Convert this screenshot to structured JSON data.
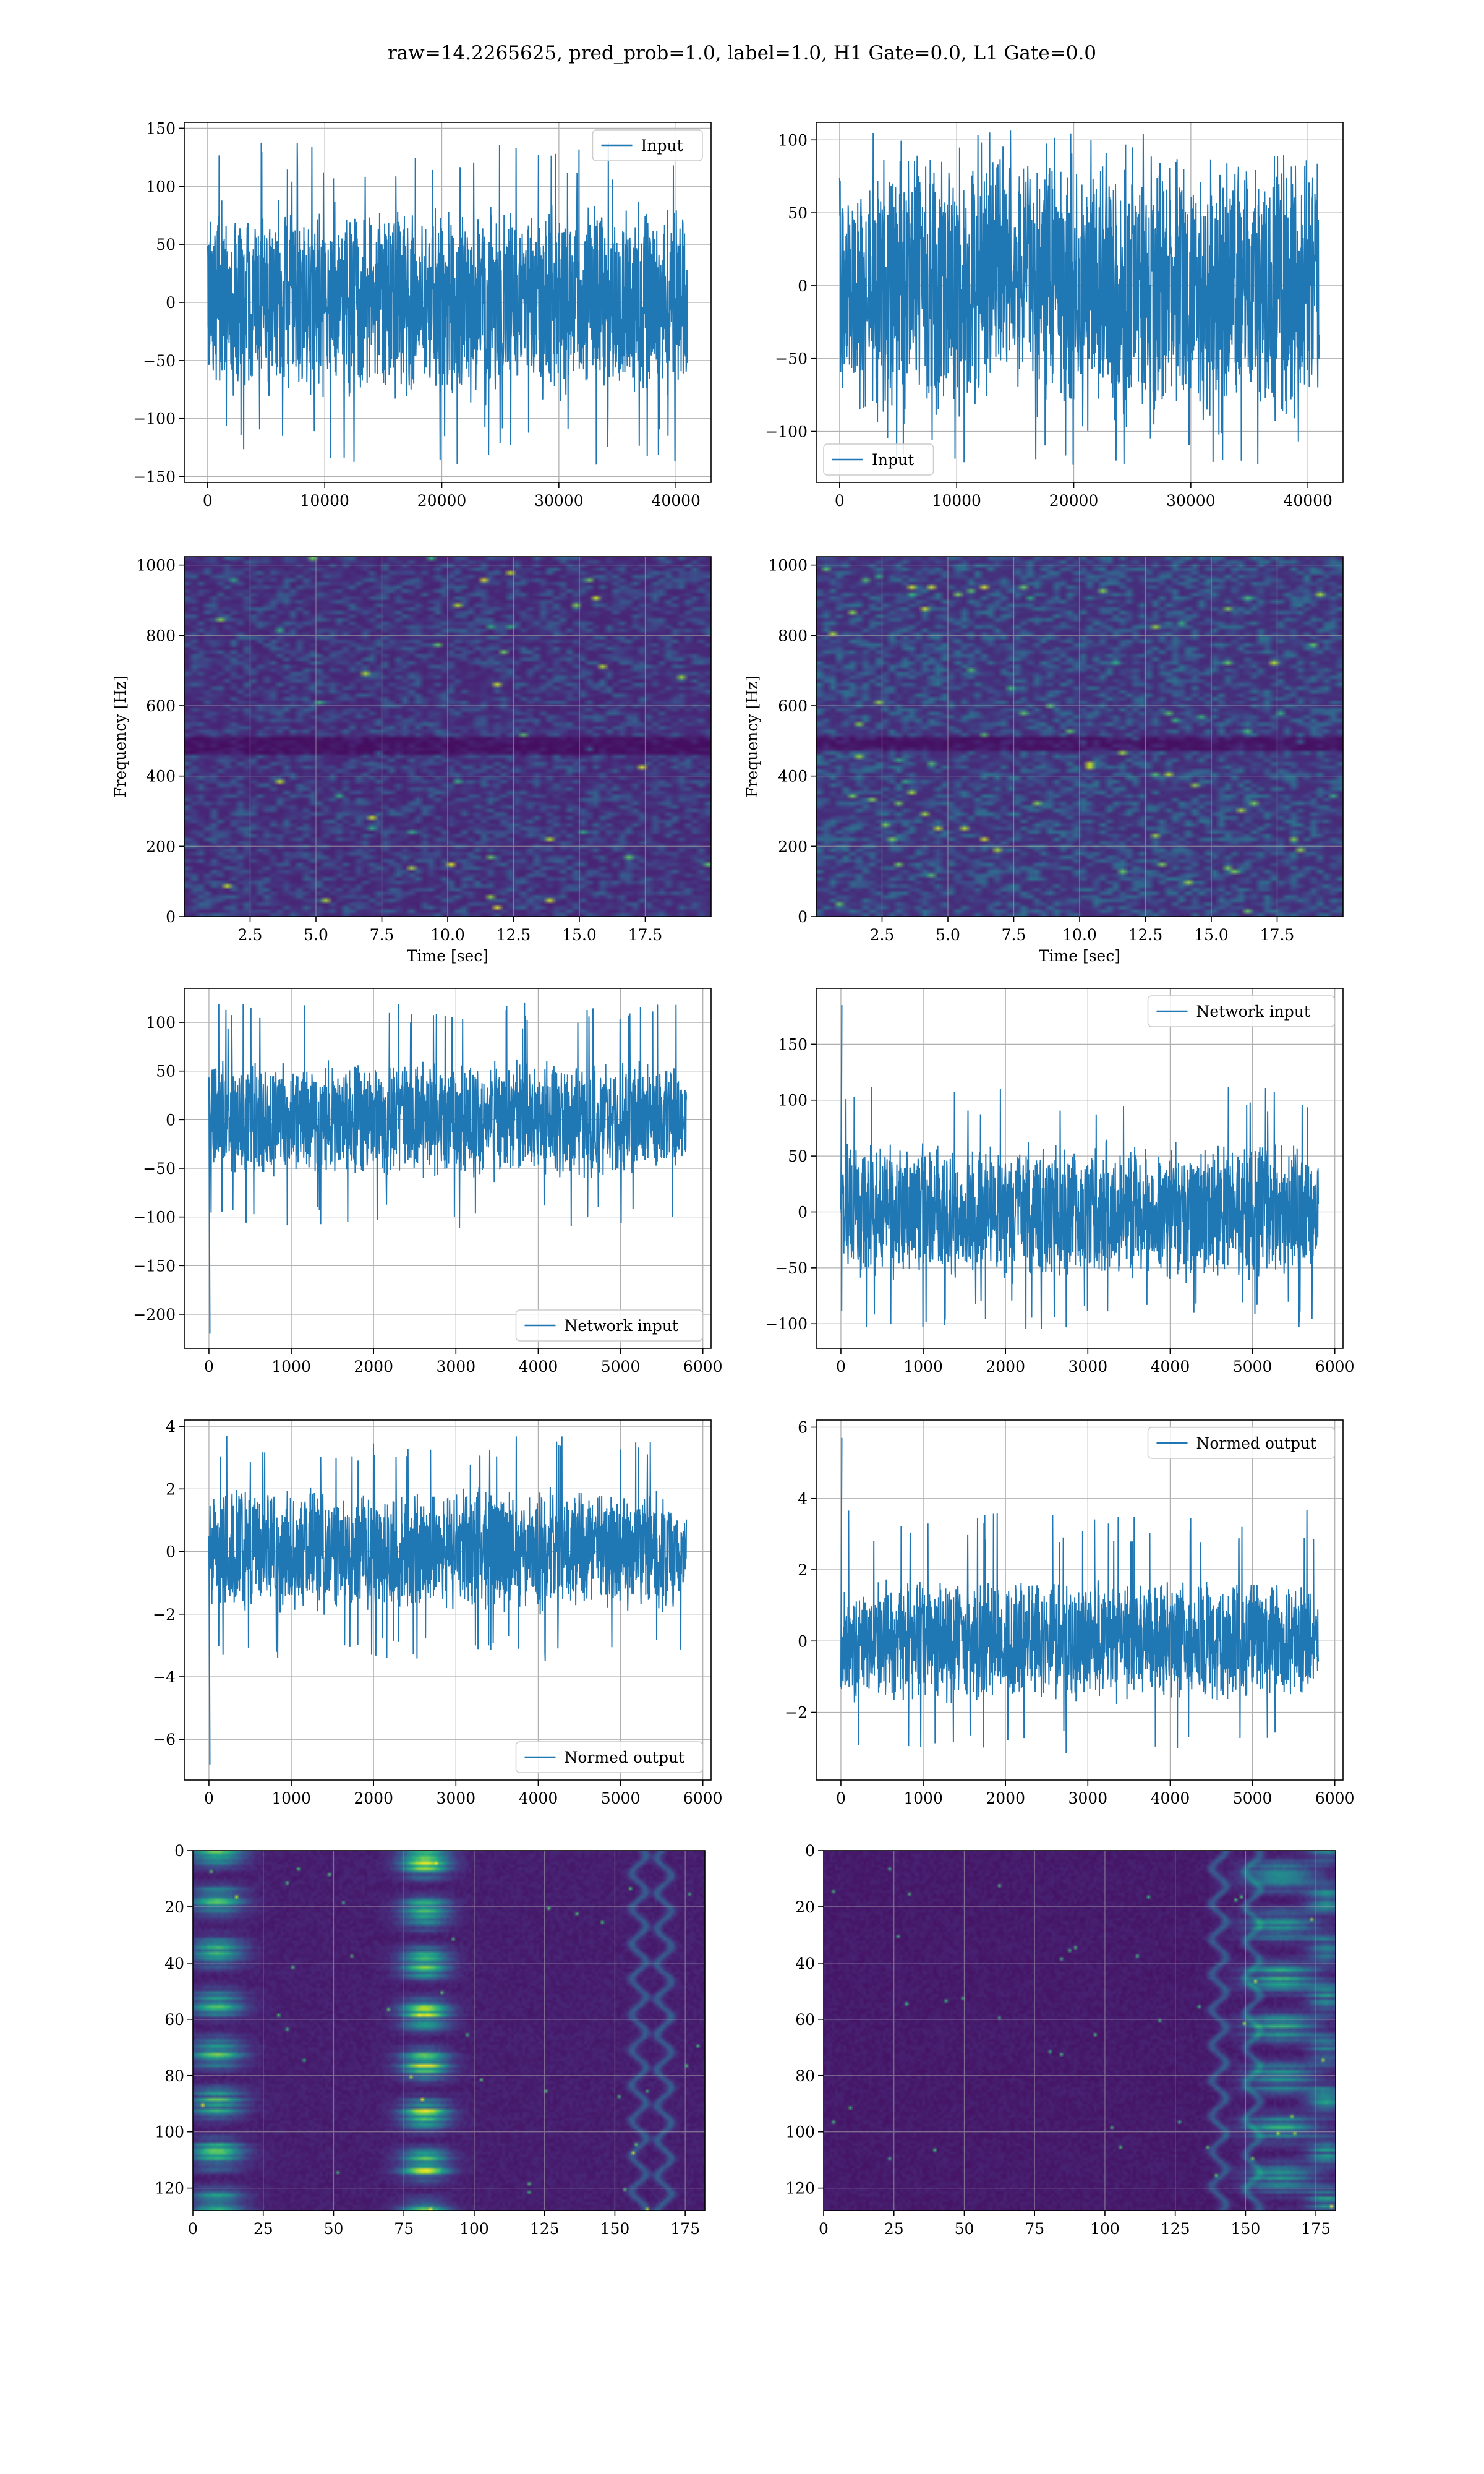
{
  "suptitle": "raw=14.2265625, pred_prob=1.0, label=1.0, H1 Gate=0.0, L1 Gate=0.0",
  "colors": {
    "line": "#1f77b4",
    "grid": "#b0b0b0",
    "viridis": [
      "#440154",
      "#482878",
      "#3e4989",
      "#31688e",
      "#26828e",
      "#1f9e89",
      "#35b779",
      "#6ece58",
      "#b5de2b",
      "#fde725"
    ]
  },
  "chart_data": [
    {
      "id": "h1_input",
      "type": "line",
      "series": [
        {
          "name": "Input",
          "kind": "noise",
          "n": 40960,
          "center": 0,
          "typical_amplitude": 90,
          "peak_max": 138,
          "peak_min": -140
        }
      ],
      "xlim": [
        -2000,
        43000
      ],
      "ylim": [
        -155,
        155
      ],
      "xticks": [
        0,
        10000,
        20000,
        30000,
        40000
      ],
      "xticklabels": [
        "0",
        "10000",
        "20000",
        "30000",
        "40000"
      ],
      "yticks": [
        -150,
        -100,
        -50,
        0,
        50,
        100,
        150
      ],
      "yticklabels": [
        "−150",
        "−100",
        "−50",
        "0",
        "50",
        "100",
        "150"
      ],
      "legend": {
        "labels": [
          "Input"
        ],
        "loc": "upper right"
      },
      "grid": true
    },
    {
      "id": "l1_input",
      "type": "line",
      "series": [
        {
          "name": "Input",
          "kind": "noise",
          "n": 40960,
          "center": 0,
          "typical_amplitude": 95,
          "peak_max": 107,
          "peak_min": -123
        }
      ],
      "xlim": [
        -2000,
        43000
      ],
      "ylim": [
        -135,
        112
      ],
      "xticks": [
        0,
        10000,
        20000,
        30000,
        40000
      ],
      "xticklabels": [
        "0",
        "10000",
        "20000",
        "30000",
        "40000"
      ],
      "yticks": [
        -100,
        -50,
        0,
        50,
        100
      ],
      "yticklabels": [
        "−100",
        "−50",
        "0",
        "50",
        "100"
      ],
      "legend": {
        "labels": [
          "Input"
        ],
        "loc": "lower left"
      },
      "grid": true
    },
    {
      "id": "h1_spectrogram",
      "type": "heatmap",
      "xlabel": "Time [sec]",
      "ylabel": "Frequency [Hz]",
      "xlim": [
        0,
        20
      ],
      "ylim": [
        0,
        1024
      ],
      "xticks": [
        2.5,
        5.0,
        7.5,
        10.0,
        12.5,
        15.0,
        17.5
      ],
      "xticklabels": [
        "2.5",
        "5.0",
        "7.5",
        "10.0",
        "12.5",
        "15.0",
        "17.5"
      ],
      "yticks": [
        0,
        200,
        400,
        600,
        800,
        1000
      ],
      "yticklabels": [
        "0",
        "200",
        "400",
        "600",
        "800",
        "1000"
      ],
      "colormap": "viridis",
      "texture": {
        "seed": 11,
        "cells_x": 80,
        "cells_y": 100,
        "base": 0.1,
        "spread": 0.22,
        "hot_prob": 0.004,
        "dark_bands": [
          {
            "from": 470,
            "to": 520
          }
        ]
      },
      "grid": true
    },
    {
      "id": "l1_spectrogram",
      "type": "heatmap",
      "xlabel": "Time [sec]",
      "ylabel": "Frequency [Hz]",
      "xlim": [
        0,
        20
      ],
      "ylim": [
        0,
        1024
      ],
      "xticks": [
        2.5,
        5.0,
        7.5,
        10.0,
        12.5,
        15.0,
        17.5
      ],
      "xticklabels": [
        "2.5",
        "5.0",
        "7.5",
        "10.0",
        "12.5",
        "15.0",
        "17.5"
      ],
      "yticks": [
        0,
        200,
        400,
        600,
        800,
        1000
      ],
      "yticklabels": [
        "0",
        "200",
        "400",
        "600",
        "800",
        "1000"
      ],
      "colormap": "viridis",
      "texture": {
        "seed": 23,
        "cells_x": 80,
        "cells_y": 100,
        "base": 0.12,
        "spread": 0.26,
        "hot_prob": 0.009,
        "dark_bands": [
          {
            "from": 475,
            "to": 515
          }
        ]
      },
      "grid": true
    },
    {
      "id": "h1_network_input",
      "type": "line",
      "series": [
        {
          "name": "Network input",
          "kind": "noise",
          "n": 5800,
          "center": 0,
          "typical_amplitude": 65,
          "peak_max": 122,
          "peak_min": -115,
          "start_spike": -220,
          "taper_end": 150
        }
      ],
      "xlim": [
        -300,
        6100
      ],
      "ylim": [
        -235,
        135
      ],
      "xticks": [
        0,
        1000,
        2000,
        3000,
        4000,
        5000,
        6000
      ],
      "xticklabels": [
        "0",
        "1000",
        "2000",
        "3000",
        "4000",
        "5000",
        "6000"
      ],
      "yticks": [
        -200,
        -150,
        -100,
        -50,
        0,
        50,
        100
      ],
      "yticklabels": [
        "−200",
        "−150",
        "−100",
        "−50",
        "0",
        "50",
        "100"
      ],
      "legend": {
        "labels": [
          "Network input"
        ],
        "loc": "lower right"
      },
      "grid": true
    },
    {
      "id": "l1_network_input",
      "type": "line",
      "series": [
        {
          "name": "Network input",
          "kind": "noise",
          "n": 5800,
          "center": 0,
          "typical_amplitude": 65,
          "peak_max": 115,
          "peak_min": -105,
          "start_spike": 185,
          "taper_end": 150
        }
      ],
      "xlim": [
        -300,
        6100
      ],
      "ylim": [
        -122,
        200
      ],
      "xticks": [
        0,
        1000,
        2000,
        3000,
        4000,
        5000,
        6000
      ],
      "xticklabels": [
        "0",
        "1000",
        "2000",
        "3000",
        "4000",
        "5000",
        "6000"
      ],
      "yticks": [
        -100,
        -50,
        0,
        50,
        100,
        150
      ],
      "yticklabels": [
        "−100",
        "−50",
        "0",
        "50",
        "100",
        "150"
      ],
      "legend": {
        "labels": [
          "Network input"
        ],
        "loc": "upper right"
      },
      "grid": true
    },
    {
      "id": "h1_normed_output",
      "type": "line",
      "series": [
        {
          "name": "Normed output",
          "kind": "noise",
          "n": 5800,
          "center": 0,
          "typical_amplitude": 2.1,
          "peak_max": 3.7,
          "peak_min": -3.5,
          "start_spike": -6.8,
          "taper_end": 150
        }
      ],
      "xlim": [
        -300,
        6100
      ],
      "ylim": [
        -7.3,
        4.2
      ],
      "xticks": [
        0,
        1000,
        2000,
        3000,
        4000,
        5000,
        6000
      ],
      "xticklabels": [
        "0",
        "1000",
        "2000",
        "3000",
        "4000",
        "5000",
        "6000"
      ],
      "yticks": [
        -6,
        -4,
        -2,
        0,
        2,
        4
      ],
      "yticklabels": [
        "−6",
        "−4",
        "−2",
        "0",
        "2",
        "4"
      ],
      "legend": {
        "labels": [
          "Normed output"
        ],
        "loc": "lower right"
      },
      "grid": true
    },
    {
      "id": "l1_normed_output",
      "type": "line",
      "series": [
        {
          "name": "Normed output",
          "kind": "noise",
          "n": 5800,
          "center": 0,
          "typical_amplitude": 1.8,
          "peak_max": 3.7,
          "peak_min": -3.3,
          "start_spike": 5.7,
          "taper_end": 150
        }
      ],
      "xlim": [
        -300,
        6100
      ],
      "ylim": [
        -3.9,
        6.2
      ],
      "xticks": [
        0,
        1000,
        2000,
        3000,
        4000,
        5000,
        6000
      ],
      "xticklabels": [
        "0",
        "1000",
        "2000",
        "3000",
        "4000",
        "5000",
        "6000"
      ],
      "yticks": [
        -2,
        0,
        2,
        4,
        6
      ],
      "yticklabels": [
        "−2",
        "0",
        "2",
        "4",
        "6"
      ],
      "legend": {
        "labels": [
          "Normed output"
        ],
        "loc": "upper right"
      },
      "grid": true
    },
    {
      "id": "h1_feature_map",
      "type": "heatmap",
      "xlim": [
        0,
        182
      ],
      "ylim_inverted": [
        0,
        128
      ],
      "xticks": [
        0,
        25,
        50,
        75,
        100,
        125,
        150,
        175
      ],
      "xticklabels": [
        "0",
        "25",
        "50",
        "75",
        "100",
        "125",
        "150",
        "175"
      ],
      "yticks": [
        0,
        20,
        40,
        60,
        80,
        100,
        120
      ],
      "yticklabels": [
        "0",
        "20",
        "40",
        "60",
        "80",
        "100",
        "120"
      ],
      "colormap": "viridis",
      "texture": {
        "seed": 41,
        "rows": 128,
        "cols": 182,
        "hot_columns": [
          {
            "center": 8,
            "width": 9,
            "gain": 0.65
          },
          {
            "center": 82,
            "width": 8,
            "gain": 0.85
          }
        ],
        "wavy_columns": [
          158,
          167
        ],
        "base": 0.06
      },
      "grid": true
    },
    {
      "id": "l1_feature_map",
      "type": "heatmap",
      "xlim": [
        0,
        182
      ],
      "ylim_inverted": [
        0,
        128
      ],
      "xticks": [
        0,
        25,
        50,
        75,
        100,
        125,
        150,
        175
      ],
      "xticklabels": [
        "0",
        "25",
        "50",
        "75",
        "100",
        "125",
        "150",
        "175"
      ],
      "yticks": [
        0,
        20,
        40,
        60,
        80,
        100,
        120
      ],
      "yticklabels": [
        "0",
        "20",
        "40",
        "60",
        "80",
        "100",
        "120"
      ],
      "colormap": "viridis",
      "texture": {
        "seed": 57,
        "rows": 128,
        "cols": 182,
        "hot_columns": [
          {
            "center": 162,
            "width": 12,
            "gain": 0.55
          },
          {
            "center": 178,
            "width": 6,
            "gain": 0.45
          }
        ],
        "wavy_columns": [
          140,
          152
        ],
        "base": 0.05
      },
      "grid": true
    }
  ]
}
